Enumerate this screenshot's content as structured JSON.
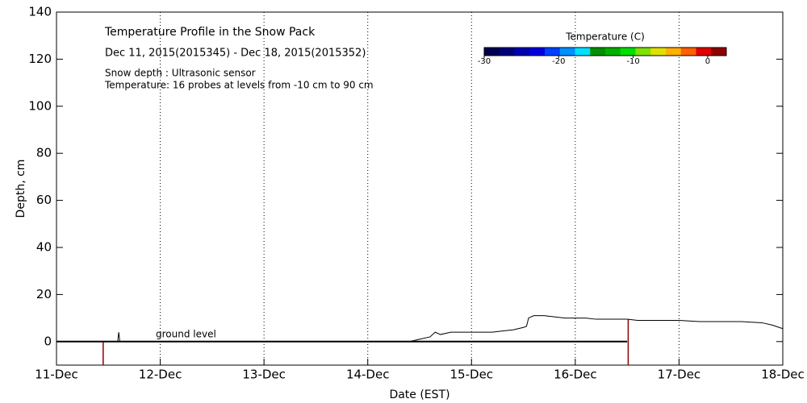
{
  "chart_data": {
    "type": "line",
    "title": "Temperature Profile in the Snow Pack",
    "subtitle": "Dec 11, 2015(2015345) - Dec 18, 2015(2015352)",
    "notes": [
      "Snow depth : Ultrasonic sensor",
      "Temperature: 16 probes at levels from -10 cm to 90 cm"
    ],
    "x_label": "Date (EST)",
    "y_label": "Depth, cm",
    "xlim": [
      11,
      18
    ],
    "xticks": [
      {
        "value": 11,
        "label": "11-Dec"
      },
      {
        "value": 12,
        "label": "12-Dec"
      },
      {
        "value": 13,
        "label": "13-Dec"
      },
      {
        "value": 14,
        "label": "14-Dec"
      },
      {
        "value": 15,
        "label": "15-Dec"
      },
      {
        "value": 16,
        "label": "16-Dec"
      },
      {
        "value": 17,
        "label": "17-Dec"
      },
      {
        "value": 18,
        "label": "18-Dec"
      }
    ],
    "ylim": [
      -10,
      140
    ],
    "yticks": [
      0,
      20,
      40,
      60,
      80,
      100,
      120,
      140
    ],
    "grid": "x",
    "series": [
      {
        "name": "Snow depth",
        "color": "#000000",
        "x": [
          11,
          11.59,
          11.6,
          11.61,
          14.4,
          14.5,
          14.6,
          14.65,
          14.7,
          14.8,
          14.9,
          15.0,
          15.1,
          15.2,
          15.3,
          15.4,
          15.5,
          15.53,
          15.55,
          15.6,
          15.7,
          15.8,
          15.9,
          16.0,
          16.1,
          16.2,
          16.3,
          16.4,
          16.5,
          16.6,
          16.8,
          17.0,
          17.2,
          17.4,
          17.6,
          17.8,
          17.9,
          18.0
        ],
        "values": [
          0,
          0,
          4,
          0,
          0,
          1,
          2,
          4,
          3,
          4,
          4,
          4,
          4,
          4,
          4.5,
          5,
          6,
          6.5,
          10,
          11,
          11,
          10.5,
          10,
          10,
          10,
          9.5,
          9.5,
          9.5,
          9.5,
          9,
          9,
          9,
          8.5,
          8.5,
          8.5,
          8,
          7,
          5.5
        ]
      }
    ],
    "ground_level": {
      "label": "ground level",
      "x": [
        11,
        16.5
      ],
      "y": 0,
      "color": "#000000"
    },
    "vlines": [
      {
        "x": 11.45,
        "top": 0,
        "color": "#8b0000"
      },
      {
        "x": 16.51,
        "top": 9.5,
        "color": "#8b0000"
      }
    ],
    "colorbar": {
      "title": "Temperature (C)",
      "lim": [
        -30,
        2.5
      ],
      "ticks": [
        -30,
        -20,
        -10,
        0
      ],
      "colors": [
        "#000050",
        "#00007a",
        "#0000b0",
        "#0000e0",
        "#0040ff",
        "#0090ff",
        "#00e0ff",
        "#009000",
        "#00b000",
        "#00e000",
        "#80e000",
        "#e0e000",
        "#ffb000",
        "#ff6000",
        "#e00000",
        "#900000"
      ]
    }
  }
}
